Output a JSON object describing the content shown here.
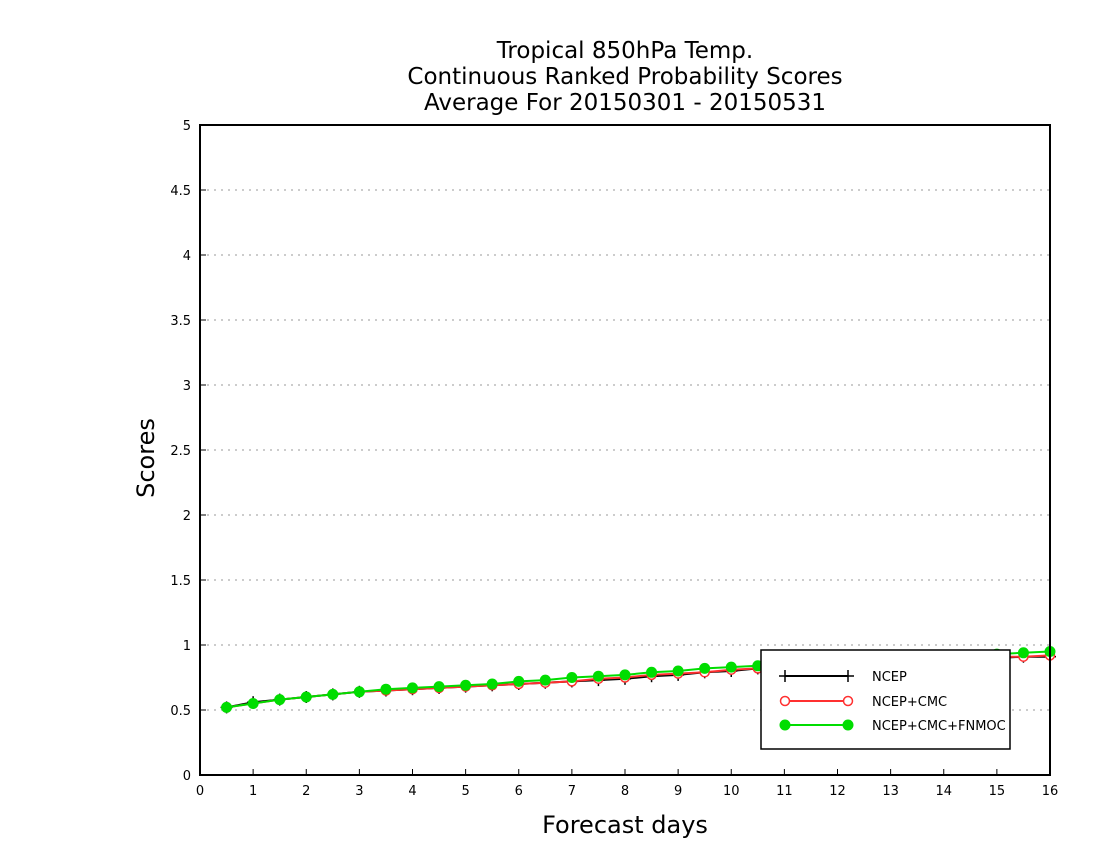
{
  "chart_data": {
    "type": "line",
    "title_lines": [
      "Tropical 850hPa Temp.",
      "Continuous Ranked Probability Scores",
      "Average For 20150301 - 20150531"
    ],
    "xlabel": "Forecast days",
    "ylabel": "Scores",
    "xlim": [
      0,
      16
    ],
    "ylim": [
      0,
      5
    ],
    "xticks": [
      0,
      1,
      2,
      3,
      4,
      5,
      6,
      7,
      8,
      9,
      10,
      11,
      12,
      13,
      14,
      15,
      16
    ],
    "yticks": [
      0,
      0.5,
      1,
      1.5,
      2,
      2.5,
      3,
      3.5,
      4,
      4.5,
      5
    ],
    "ytick_labels": [
      "0",
      "0.5",
      "1",
      "1.5",
      "2",
      "2.5",
      "3",
      "3.5",
      "4",
      "4.5",
      "5"
    ],
    "grid": "horizontal dotted",
    "legend_placement": "bottom-right",
    "x": [
      0.5,
      1,
      1.5,
      2,
      2.5,
      3,
      3.5,
      4,
      4.5,
      5,
      5.5,
      6,
      6.5,
      7,
      7.5,
      8,
      8.5,
      9,
      9.5,
      10,
      10.5,
      11,
      11.5,
      12,
      12.5,
      13,
      13.5,
      14,
      14.5,
      15,
      15.5,
      16
    ],
    "series": [
      {
        "name": "NCEP",
        "color": "#000000",
        "marker": "plus",
        "values": [
          0.52,
          0.56,
          0.58,
          0.6,
          0.62,
          0.64,
          0.65,
          0.66,
          0.67,
          0.68,
          0.69,
          0.7,
          0.71,
          0.72,
          0.73,
          0.74,
          0.76,
          0.77,
          0.79,
          0.8,
          0.82,
          0.83,
          0.84,
          0.85,
          0.86,
          0.87,
          0.88,
          0.89,
          0.9,
          0.9,
          0.91,
          0.91
        ]
      },
      {
        "name": "NCEP+CMC",
        "color": "#ff3030",
        "marker": "open-circle",
        "values": [
          0.52,
          0.55,
          0.58,
          0.6,
          0.62,
          0.64,
          0.65,
          0.66,
          0.67,
          0.68,
          0.69,
          0.7,
          0.71,
          0.72,
          0.74,
          0.75,
          0.77,
          0.78,
          0.79,
          0.81,
          0.82,
          0.83,
          0.84,
          0.85,
          0.86,
          0.87,
          0.88,
          0.89,
          0.9,
          0.91,
          0.91,
          0.92
        ]
      },
      {
        "name": "NCEP+CMC+FNMOC",
        "color": "#00dd00",
        "marker": "filled-circle",
        "values": [
          0.52,
          0.55,
          0.58,
          0.6,
          0.62,
          0.64,
          0.66,
          0.67,
          0.68,
          0.69,
          0.7,
          0.72,
          0.73,
          0.75,
          0.76,
          0.77,
          0.79,
          0.8,
          0.82,
          0.83,
          0.84,
          0.85,
          0.86,
          0.87,
          0.88,
          0.89,
          0.9,
          0.91,
          0.92,
          0.93,
          0.94,
          0.95
        ]
      }
    ]
  }
}
